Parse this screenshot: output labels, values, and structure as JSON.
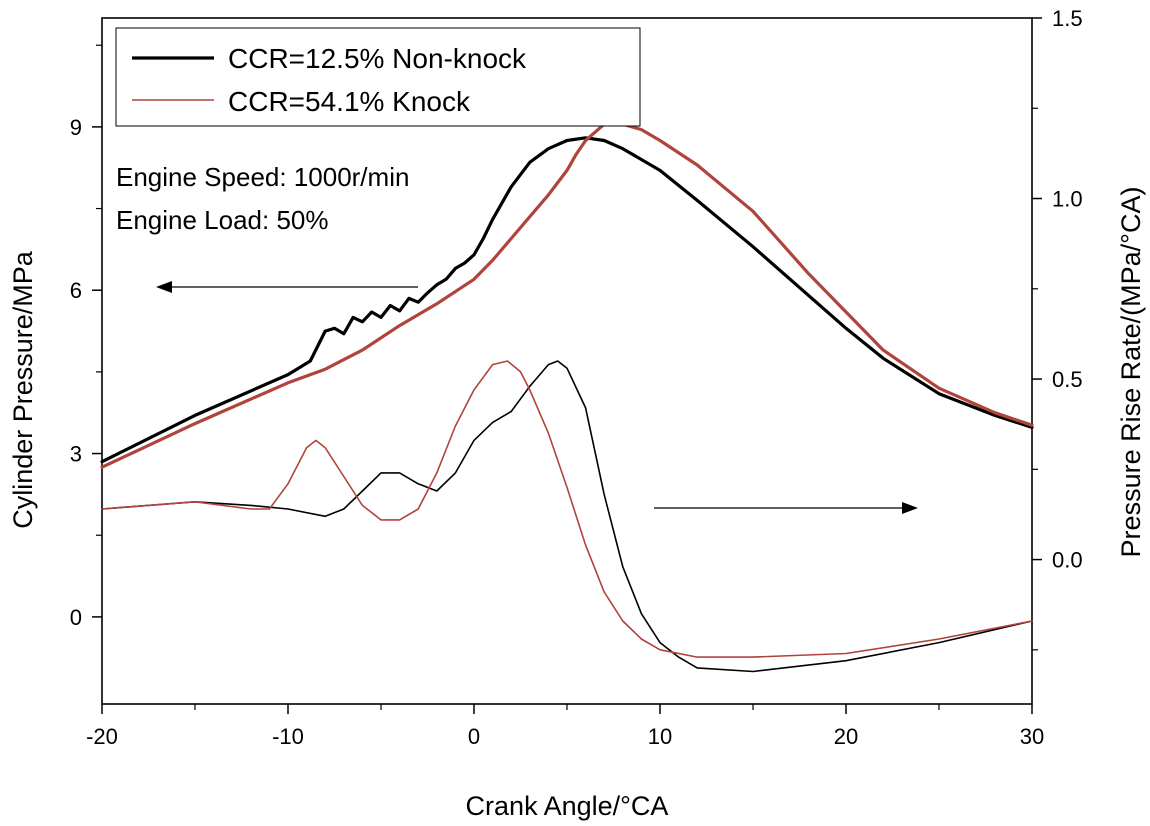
{
  "chart_data": {
    "type": "line",
    "xlabel": "Crank Angle/°CA",
    "ylabel_left": "Cylinder Pressure/MPa",
    "ylabel_right": "Pressure Rise Rate/(MPa/°CA)",
    "xlim": [
      -20,
      30
    ],
    "ylim_left": [
      -1.6,
      11
    ],
    "ylim_right": [
      -0.4,
      1.5
    ],
    "x_ticks": [
      -20,
      -10,
      0,
      10,
      20,
      30
    ],
    "x_tick_labels": [
      "-20",
      "-10",
      "0",
      "10",
      "20",
      "30"
    ],
    "y_left_ticks": [
      0,
      3,
      6,
      9
    ],
    "y_left_tick_labels": [
      "0",
      "3",
      "6",
      "9"
    ],
    "y_right_ticks": [
      0.0,
      0.5,
      1.0,
      1.5
    ],
    "y_right_tick_labels": [
      "0.0",
      "0.5",
      "1.0",
      "1.5"
    ],
    "legend": [
      {
        "label": "CCR=12.5% Non-knock",
        "color": "#000000"
      },
      {
        "label": "CCR=54.1% Knock",
        "color": "#b0443c"
      }
    ],
    "annotations": {
      "line1": "Engine Speed: 1000r/min",
      "line2": "Engine Load: 50%"
    },
    "arrows": [
      {
        "direction": "left",
        "meaning": "left axis"
      },
      {
        "direction": "right",
        "meaning": "right axis"
      }
    ],
    "series": [
      {
        "name": "CCR=12.5% Non-knock pressure",
        "axis": "left",
        "color": "#000000",
        "width": 3.2,
        "x": [
          -20,
          -15,
          -10,
          -8.8,
          -8,
          -7.5,
          -7,
          -6.5,
          -6,
          -5.5,
          -5,
          -4.5,
          -4,
          -3.5,
          -3,
          -2.5,
          -2,
          -1.5,
          -1,
          -0.5,
          0,
          0.5,
          1,
          1.5,
          2,
          3,
          4,
          5,
          6,
          7,
          8,
          10,
          12,
          15,
          18,
          20,
          22,
          25,
          28,
          30
        ],
        "y": [
          2.85,
          3.7,
          4.45,
          4.7,
          5.25,
          5.3,
          5.2,
          5.5,
          5.42,
          5.6,
          5.5,
          5.72,
          5.62,
          5.85,
          5.78,
          5.95,
          6.1,
          6.2,
          6.4,
          6.5,
          6.65,
          6.95,
          7.3,
          7.6,
          7.9,
          8.35,
          8.6,
          8.75,
          8.8,
          8.75,
          8.6,
          8.2,
          7.65,
          6.8,
          5.9,
          5.3,
          4.75,
          4.1,
          3.7,
          3.48
        ]
      },
      {
        "name": "CCR=54.1% Knock pressure",
        "axis": "left",
        "color": "#b0443c",
        "width": 3.2,
        "x": [
          -20,
          -15,
          -10,
          -8,
          -6,
          -4,
          -2,
          0,
          1,
          2,
          3,
          4,
          5,
          5.5,
          6,
          6.5,
          7,
          8,
          9,
          10,
          12,
          15,
          18,
          20,
          22,
          25,
          28,
          30
        ],
        "y": [
          2.75,
          3.55,
          4.3,
          4.55,
          4.9,
          5.35,
          5.75,
          6.2,
          6.55,
          6.95,
          7.35,
          7.75,
          8.2,
          8.5,
          8.75,
          8.9,
          9.05,
          9.05,
          8.95,
          8.75,
          8.3,
          7.45,
          6.3,
          5.6,
          4.9,
          4.2,
          3.75,
          3.52
        ]
      },
      {
        "name": "CCR=12.5% Non-knock pressure rise rate",
        "axis": "right",
        "color": "#000000",
        "width": 1.6,
        "x": [
          -20,
          -15,
          -12,
          -10,
          -8,
          -7,
          -6,
          -5,
          -4,
          -3,
          -2,
          -1,
          0,
          1,
          2,
          3,
          4,
          4.5,
          5,
          6,
          7,
          8,
          9,
          10,
          11,
          12,
          15,
          20,
          25,
          30
        ],
        "y": [
          0.14,
          0.16,
          0.15,
          0.14,
          0.12,
          0.14,
          0.19,
          0.24,
          0.24,
          0.21,
          0.19,
          0.24,
          0.33,
          0.38,
          0.41,
          0.48,
          0.54,
          0.55,
          0.53,
          0.42,
          0.18,
          -0.02,
          -0.15,
          -0.23,
          -0.27,
          -0.3,
          -0.31,
          -0.28,
          -0.23,
          -0.17
        ]
      },
      {
        "name": "CCR=54.1% Knock pressure rise rate",
        "axis": "right",
        "color": "#b0443c",
        "width": 1.6,
        "x": [
          -20,
          -15,
          -12,
          -11,
          -10,
          -9,
          -8.5,
          -8,
          -7,
          -6,
          -5,
          -4,
          -3,
          -2,
          -1,
          0,
          1,
          1.8,
          2.5,
          3,
          4,
          5,
          6,
          7,
          8,
          9,
          10,
          12,
          15,
          20,
          25,
          30
        ],
        "y": [
          0.14,
          0.16,
          0.14,
          0.14,
          0.21,
          0.31,
          0.33,
          0.31,
          0.23,
          0.15,
          0.11,
          0.11,
          0.14,
          0.24,
          0.37,
          0.47,
          0.54,
          0.55,
          0.52,
          0.47,
          0.35,
          0.2,
          0.04,
          -0.09,
          -0.17,
          -0.22,
          -0.25,
          -0.27,
          -0.27,
          -0.26,
          -0.22,
          -0.17
        ]
      }
    ]
  }
}
